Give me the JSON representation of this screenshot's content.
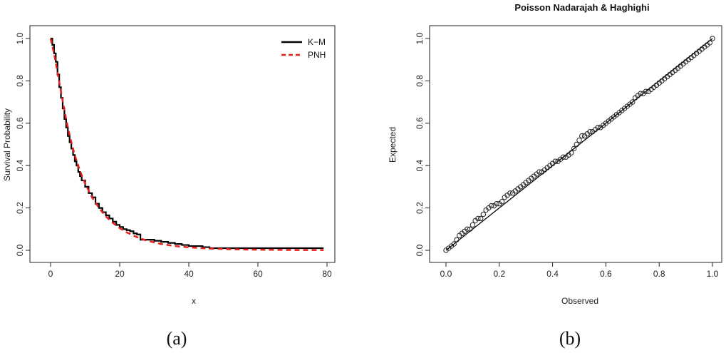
{
  "captions": [
    "(a)",
    "(b)"
  ],
  "chart_data": [
    {
      "type": "line",
      "panel": "(a)",
      "title": "",
      "xlabel": "x",
      "ylabel": "Survival Probability",
      "xlim": [
        0,
        80
      ],
      "ylim": [
        0,
        1
      ],
      "xticks": [
        0,
        20,
        40,
        60,
        80
      ],
      "yticks": [
        0.0,
        0.2,
        0.4,
        0.6,
        0.8,
        1.0
      ],
      "xtick_labels": [
        "0",
        "20",
        "40",
        "60",
        "80"
      ],
      "ytick_labels": [
        "0.0",
        "0.2",
        "0.4",
        "0.6",
        "0.8",
        "1.0"
      ],
      "legend_position": "top-right",
      "series": [
        {
          "name": "K−M",
          "style": "step",
          "color": "#000000",
          "x": [
            0,
            0.5,
            1,
            1.5,
            2,
            2.5,
            3,
            3.5,
            4,
            4.5,
            5,
            5.5,
            6,
            6.5,
            7,
            7.5,
            8,
            8.5,
            9,
            10,
            11,
            12,
            13,
            14,
            15,
            16,
            17,
            18,
            19,
            20,
            21,
            22,
            23,
            24,
            25,
            26,
            28,
            30,
            32,
            34,
            36,
            38,
            40,
            42,
            44,
            46,
            50,
            60,
            70,
            79
          ],
          "y": [
            1.0,
            0.97,
            0.93,
            0.89,
            0.83,
            0.77,
            0.72,
            0.67,
            0.62,
            0.58,
            0.54,
            0.51,
            0.48,
            0.45,
            0.42,
            0.4,
            0.37,
            0.35,
            0.33,
            0.3,
            0.27,
            0.25,
            0.22,
            0.2,
            0.18,
            0.165,
            0.15,
            0.135,
            0.12,
            0.11,
            0.1,
            0.095,
            0.09,
            0.08,
            0.075,
            0.05,
            0.05,
            0.045,
            0.04,
            0.035,
            0.03,
            0.025,
            0.02,
            0.02,
            0.015,
            0.01,
            0.01,
            0.01,
            0.01,
            0.01
          ]
        },
        {
          "name": "PNH",
          "style": "dashed",
          "color": "#e8201c",
          "x": [
            0,
            1,
            2,
            3,
            4,
            5,
            6,
            7,
            8,
            9,
            10,
            12,
            14,
            16,
            18,
            20,
            22,
            25,
            28,
            32,
            36,
            40,
            45,
            50,
            55,
            60,
            70,
            79
          ],
          "y": [
            1.0,
            0.93,
            0.84,
            0.75,
            0.66,
            0.58,
            0.51,
            0.45,
            0.4,
            0.355,
            0.315,
            0.25,
            0.2,
            0.16,
            0.13,
            0.105,
            0.085,
            0.062,
            0.045,
            0.03,
            0.02,
            0.014,
            0.009,
            0.006,
            0.004,
            0.003,
            0.0015,
            0.001
          ]
        }
      ]
    },
    {
      "type": "scatter",
      "panel": "(b)",
      "title": "Poisson Nadarajah & Haghighi",
      "xlabel": "Observed",
      "ylabel": "Expected",
      "xlim": [
        0,
        1
      ],
      "ylim": [
        0,
        1
      ],
      "xticks": [
        0.0,
        0.2,
        0.4,
        0.6,
        0.8,
        1.0
      ],
      "yticks": [
        0.0,
        0.2,
        0.4,
        0.6,
        0.8,
        1.0
      ],
      "xtick_labels": [
        "0.0",
        "0.2",
        "0.4",
        "0.6",
        "0.8",
        "1.0"
      ],
      "ytick_labels": [
        "0.0",
        "0.2",
        "0.4",
        "0.6",
        "0.8",
        "1.0"
      ],
      "reference_line": [
        [
          0,
          0
        ],
        [
          1,
          1
        ]
      ],
      "marker": "open-circle",
      "x": [
        0.0,
        0.01,
        0.02,
        0.03,
        0.04,
        0.05,
        0.06,
        0.07,
        0.08,
        0.09,
        0.1,
        0.11,
        0.12,
        0.13,
        0.14,
        0.15,
        0.16,
        0.17,
        0.18,
        0.19,
        0.2,
        0.21,
        0.22,
        0.23,
        0.24,
        0.25,
        0.26,
        0.27,
        0.28,
        0.29,
        0.3,
        0.31,
        0.32,
        0.33,
        0.34,
        0.35,
        0.36,
        0.37,
        0.38,
        0.39,
        0.4,
        0.41,
        0.42,
        0.43,
        0.44,
        0.45,
        0.46,
        0.47,
        0.48,
        0.49,
        0.5,
        0.51,
        0.52,
        0.53,
        0.54,
        0.55,
        0.56,
        0.57,
        0.58,
        0.59,
        0.6,
        0.61,
        0.62,
        0.63,
        0.64,
        0.65,
        0.66,
        0.67,
        0.68,
        0.69,
        0.7,
        0.71,
        0.72,
        0.73,
        0.74,
        0.75,
        0.76,
        0.77,
        0.78,
        0.79,
        0.8,
        0.81,
        0.82,
        0.83,
        0.84,
        0.85,
        0.86,
        0.87,
        0.88,
        0.89,
        0.9,
        0.91,
        0.92,
        0.93,
        0.94,
        0.95,
        0.96,
        0.97,
        0.98,
        0.99,
        1.0
      ],
      "y": [
        0.0,
        0.01,
        0.02,
        0.03,
        0.05,
        0.07,
        0.08,
        0.09,
        0.1,
        0.1,
        0.12,
        0.14,
        0.15,
        0.15,
        0.17,
        0.19,
        0.2,
        0.21,
        0.21,
        0.22,
        0.22,
        0.23,
        0.25,
        0.26,
        0.27,
        0.27,
        0.28,
        0.29,
        0.3,
        0.31,
        0.32,
        0.33,
        0.34,
        0.35,
        0.36,
        0.37,
        0.37,
        0.38,
        0.39,
        0.4,
        0.41,
        0.42,
        0.42,
        0.43,
        0.44,
        0.44,
        0.45,
        0.46,
        0.48,
        0.5,
        0.52,
        0.54,
        0.54,
        0.55,
        0.56,
        0.56,
        0.57,
        0.58,
        0.58,
        0.59,
        0.6,
        0.61,
        0.62,
        0.63,
        0.64,
        0.65,
        0.66,
        0.67,
        0.68,
        0.69,
        0.7,
        0.72,
        0.73,
        0.74,
        0.74,
        0.75,
        0.75,
        0.76,
        0.77,
        0.78,
        0.79,
        0.8,
        0.81,
        0.82,
        0.83,
        0.84,
        0.85,
        0.86,
        0.87,
        0.88,
        0.89,
        0.9,
        0.91,
        0.92,
        0.93,
        0.94,
        0.95,
        0.96,
        0.97,
        0.98,
        1.0
      ]
    }
  ]
}
